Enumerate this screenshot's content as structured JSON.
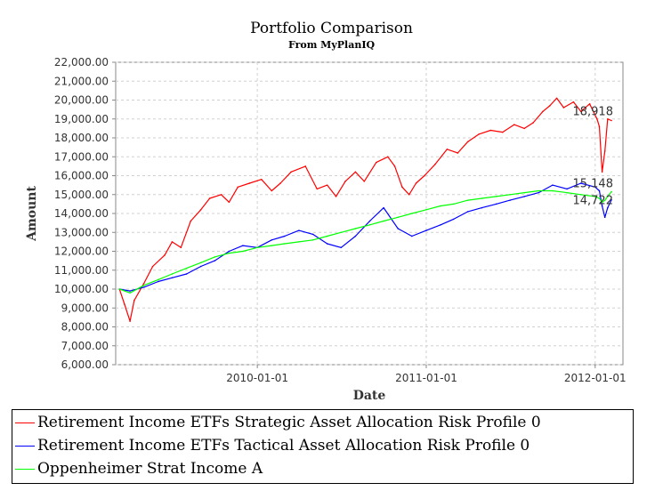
{
  "chart_data": {
    "type": "line",
    "title": "Portfolio Comparison",
    "subtitle": "From MyPlanIQ",
    "xlabel": "Date",
    "ylabel": "Amount",
    "xlim": [
      "2009-03-01",
      "2012-03-01"
    ],
    "ylim": [
      6000,
      22000
    ],
    "y_ticks": [
      6000,
      7000,
      8000,
      9000,
      10000,
      11000,
      12000,
      13000,
      14000,
      15000,
      16000,
      17000,
      18000,
      19000,
      20000,
      21000,
      22000
    ],
    "y_tick_labels": [
      "6,000.00",
      "7,000.00",
      "8,000.00",
      "9,000.00",
      "10,000.00",
      "11,000.00",
      "12,000.00",
      "13,000.00",
      "14,000.00",
      "15,000.00",
      "16,000.00",
      "17,000.00",
      "18,000.00",
      "19,000.00",
      "20,000.00",
      "21,000.00",
      "22,000.00"
    ],
    "x_ticks": [
      "2010-01-01",
      "2011-01-01",
      "2012-01-01"
    ],
    "x_tick_labels": [
      "2010-01-01",
      "2011-01-01",
      "2012-01-01"
    ],
    "grid": true,
    "legend_position": "bottom",
    "series": [
      {
        "name": "Retirement Income ETFs Strategic Asset Allocation Risk Profile 0",
        "color": "#ff0000",
        "end_label": "18,918",
        "points": [
          [
            "2009-03-09",
            10000
          ],
          [
            "2009-03-20",
            9200
          ],
          [
            "2009-04-01",
            8300
          ],
          [
            "2009-04-10",
            9400
          ],
          [
            "2009-05-01",
            10300
          ],
          [
            "2009-05-20",
            11200
          ],
          [
            "2009-06-15",
            11800
          ],
          [
            "2009-07-01",
            12500
          ],
          [
            "2009-07-20",
            12200
          ],
          [
            "2009-08-10",
            13600
          ],
          [
            "2009-09-01",
            14200
          ],
          [
            "2009-09-20",
            14800
          ],
          [
            "2009-10-15",
            15000
          ],
          [
            "2009-11-01",
            14600
          ],
          [
            "2009-11-20",
            15400
          ],
          [
            "2009-12-15",
            15600
          ],
          [
            "2010-01-10",
            15800
          ],
          [
            "2010-02-01",
            15200
          ],
          [
            "2010-02-20",
            15600
          ],
          [
            "2010-03-15",
            16200
          ],
          [
            "2010-04-15",
            16500
          ],
          [
            "2010-05-10",
            15300
          ],
          [
            "2010-06-01",
            15500
          ],
          [
            "2010-06-20",
            14900
          ],
          [
            "2010-07-10",
            15700
          ],
          [
            "2010-08-01",
            16200
          ],
          [
            "2010-08-20",
            15700
          ],
          [
            "2010-09-15",
            16700
          ],
          [
            "2010-10-10",
            17000
          ],
          [
            "2010-10-25",
            16500
          ],
          [
            "2010-11-10",
            15400
          ],
          [
            "2010-11-25",
            15000
          ],
          [
            "2010-12-10",
            15600
          ],
          [
            "2010-12-28",
            16000
          ],
          [
            "2011-01-20",
            16600
          ],
          [
            "2011-02-15",
            17400
          ],
          [
            "2011-03-10",
            17200
          ],
          [
            "2011-04-01",
            17800
          ],
          [
            "2011-04-25",
            18200
          ],
          [
            "2011-05-20",
            18400
          ],
          [
            "2011-06-15",
            18300
          ],
          [
            "2011-07-10",
            18700
          ],
          [
            "2011-08-01",
            18500
          ],
          [
            "2011-08-20",
            18800
          ],
          [
            "2011-09-10",
            19400
          ],
          [
            "2011-09-25",
            19700
          ],
          [
            "2011-10-10",
            20100
          ],
          [
            "2011-10-25",
            19600
          ],
          [
            "2011-11-15",
            19900
          ],
          [
            "2011-12-01",
            19400
          ],
          [
            "2011-12-20",
            19800
          ],
          [
            "2012-01-05",
            19000
          ],
          [
            "2012-01-10",
            18600
          ],
          [
            "2012-01-16",
            16200
          ],
          [
            "2012-01-22",
            17300
          ],
          [
            "2012-01-28",
            19000
          ],
          [
            "2012-02-05",
            18918
          ]
        ]
      },
      {
        "name": "Retirement Income ETFs Tactical Asset Allocation Risk Profile 0",
        "color": "#0000ff",
        "end_label": "14,722",
        "points": [
          [
            "2009-03-09",
            10000
          ],
          [
            "2009-04-01",
            9900
          ],
          [
            "2009-05-01",
            10100
          ],
          [
            "2009-06-01",
            10400
          ],
          [
            "2009-07-01",
            10600
          ],
          [
            "2009-08-01",
            10800
          ],
          [
            "2009-09-01",
            11200
          ],
          [
            "2009-10-01",
            11500
          ],
          [
            "2009-11-01",
            12000
          ],
          [
            "2009-12-01",
            12300
          ],
          [
            "2010-01-01",
            12200
          ],
          [
            "2010-02-01",
            12600
          ],
          [
            "2010-03-01",
            12800
          ],
          [
            "2010-04-01",
            13100
          ],
          [
            "2010-05-01",
            12900
          ],
          [
            "2010-06-01",
            12400
          ],
          [
            "2010-07-01",
            12200
          ],
          [
            "2010-08-01",
            12800
          ],
          [
            "2010-09-01",
            13600
          ],
          [
            "2010-10-01",
            14300
          ],
          [
            "2010-11-01",
            13200
          ],
          [
            "2010-12-01",
            12800
          ],
          [
            "2011-01-01",
            13100
          ],
          [
            "2011-02-01",
            13400
          ],
          [
            "2011-03-01",
            13700
          ],
          [
            "2011-04-01",
            14100
          ],
          [
            "2011-05-01",
            14300
          ],
          [
            "2011-06-01",
            14500
          ],
          [
            "2011-07-01",
            14700
          ],
          [
            "2011-08-01",
            14900
          ],
          [
            "2011-09-01",
            15100
          ],
          [
            "2011-10-01",
            15500
          ],
          [
            "2011-11-01",
            15300
          ],
          [
            "2011-12-01",
            15600
          ],
          [
            "2012-01-01",
            15400
          ],
          [
            "2012-01-10",
            15200
          ],
          [
            "2012-01-16",
            14400
          ],
          [
            "2012-01-22",
            13800
          ],
          [
            "2012-01-28",
            14300
          ],
          [
            "2012-02-05",
            14722
          ]
        ]
      },
      {
        "name": "Oppenheimer Strat Income A",
        "color": "#00ff00",
        "end_label": "15,148",
        "points": [
          [
            "2009-03-09",
            10000
          ],
          [
            "2009-04-01",
            9800
          ],
          [
            "2009-05-01",
            10200
          ],
          [
            "2009-06-01",
            10500
          ],
          [
            "2009-07-01",
            10800
          ],
          [
            "2009-08-01",
            11100
          ],
          [
            "2009-09-01",
            11400
          ],
          [
            "2009-10-01",
            11700
          ],
          [
            "2009-11-01",
            11900
          ],
          [
            "2009-12-01",
            12000
          ],
          [
            "2010-01-01",
            12200
          ],
          [
            "2010-02-01",
            12300
          ],
          [
            "2010-03-01",
            12400
          ],
          [
            "2010-04-01",
            12500
          ],
          [
            "2010-05-01",
            12600
          ],
          [
            "2010-06-01",
            12800
          ],
          [
            "2010-07-01",
            13000
          ],
          [
            "2010-08-01",
            13200
          ],
          [
            "2010-09-01",
            13400
          ],
          [
            "2010-10-01",
            13600
          ],
          [
            "2010-11-01",
            13800
          ],
          [
            "2010-12-01",
            14000
          ],
          [
            "2011-01-01",
            14200
          ],
          [
            "2011-02-01",
            14400
          ],
          [
            "2011-03-01",
            14500
          ],
          [
            "2011-04-01",
            14700
          ],
          [
            "2011-05-01",
            14800
          ],
          [
            "2011-06-01",
            14900
          ],
          [
            "2011-07-01",
            15000
          ],
          [
            "2011-08-01",
            15100
          ],
          [
            "2011-09-01",
            15200
          ],
          [
            "2011-10-01",
            15200
          ],
          [
            "2011-11-01",
            15100
          ],
          [
            "2011-12-01",
            15000
          ],
          [
            "2012-01-01",
            14900
          ],
          [
            "2012-01-10",
            14800
          ],
          [
            "2012-01-16",
            14600
          ],
          [
            "2012-01-22",
            14700
          ],
          [
            "2012-01-28",
            14900
          ],
          [
            "2012-02-05",
            15148
          ]
        ]
      }
    ]
  }
}
